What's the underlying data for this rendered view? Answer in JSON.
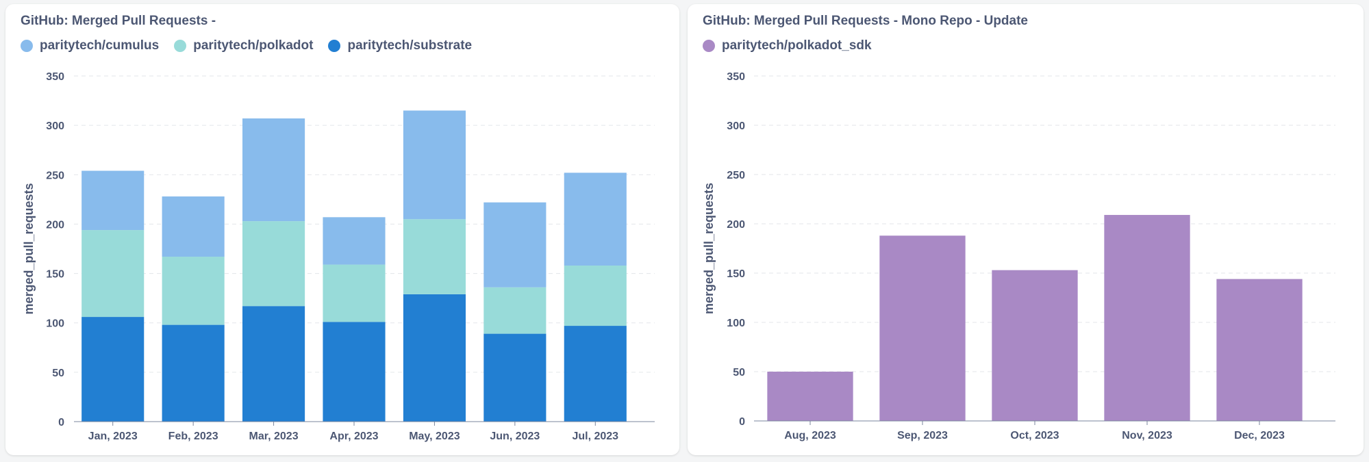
{
  "chart_data": [
    {
      "type": "bar",
      "stacked": true,
      "title": "GitHub: Merged Pull Requests -",
      "ylabel": "merged_pull_requests",
      "xlabel": "",
      "categories": [
        "Jan, 2023",
        "Feb, 2023",
        "Mar, 2023",
        "Apr, 2023",
        "May, 2023",
        "Jun, 2023",
        "Jul, 2023"
      ],
      "yticks": [
        0,
        50,
        100,
        150,
        200,
        250,
        300,
        350
      ],
      "ylim": [
        0,
        350
      ],
      "grid": true,
      "legend_position": "top-left",
      "series": [
        {
          "name": "paritytech/cumulus",
          "color": "#88bbec",
          "values": [
            60,
            61,
            104,
            48,
            110,
            86,
            94
          ]
        },
        {
          "name": "paritytech/polkadot",
          "color": "#98dbd9",
          "values": [
            88,
            69,
            86,
            58,
            76,
            47,
            61
          ]
        },
        {
          "name": "paritytech/substrate",
          "color": "#227fd2",
          "values": [
            106,
            98,
            117,
            101,
            129,
            89,
            97
          ]
        }
      ]
    },
    {
      "type": "bar",
      "stacked": false,
      "title": "GitHub: Merged Pull Requests - Mono Repo - Update",
      "ylabel": "merged_pull_requests",
      "xlabel": "",
      "categories": [
        "Aug, 2023",
        "Sep, 2023",
        "Oct, 2023",
        "Nov, 2023",
        "Dec, 2023"
      ],
      "yticks": [
        0,
        50,
        100,
        150,
        200,
        250,
        300,
        350
      ],
      "ylim": [
        0,
        350
      ],
      "grid": true,
      "legend_position": "top-left",
      "series": [
        {
          "name": "paritytech/polkadot_sdk",
          "color": "#a989c5",
          "values": [
            50,
            188,
            153,
            209,
            144
          ]
        }
      ]
    }
  ]
}
